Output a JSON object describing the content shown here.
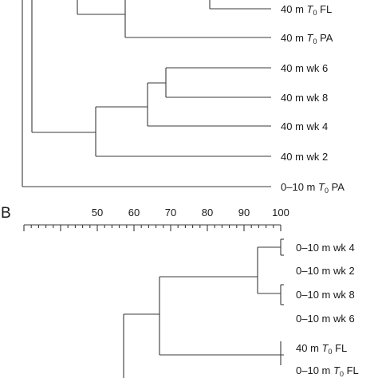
{
  "panels": {
    "a": {
      "leaves": [
        {
          "pre": "40 m ",
          "t": "T",
          "sub": "0",
          "post": " FL"
        },
        {
          "pre": "40 m ",
          "t": "T",
          "sub": "0",
          "post": " PA"
        },
        {
          "pre": "40 m wk 6"
        },
        {
          "pre": "40 m wk 8"
        },
        {
          "pre": "40 m wk 4"
        },
        {
          "pre": "40 m wk 2"
        },
        {
          "pre": "0–10 m ",
          "t": "T",
          "sub": "0",
          "post": " PA"
        }
      ]
    },
    "b": {
      "letter": "B",
      "scale": {
        "ticks": [
          50,
          60,
          70,
          80,
          90,
          100
        ],
        "min": 30,
        "max": 100
      },
      "leaves": [
        {
          "pre": "0–10 m wk 4"
        },
        {
          "pre": "0–10 m wk 2"
        },
        {
          "pre": "0–10 m wk 8"
        },
        {
          "pre": "0–10 m wk 6"
        },
        {
          "pre": "40 m ",
          "t": "T",
          "sub": "0",
          "post": " FL"
        },
        {
          "pre": "0–10 m ",
          "t": "T",
          "sub": "0",
          "post": " FL"
        }
      ]
    }
  }
}
